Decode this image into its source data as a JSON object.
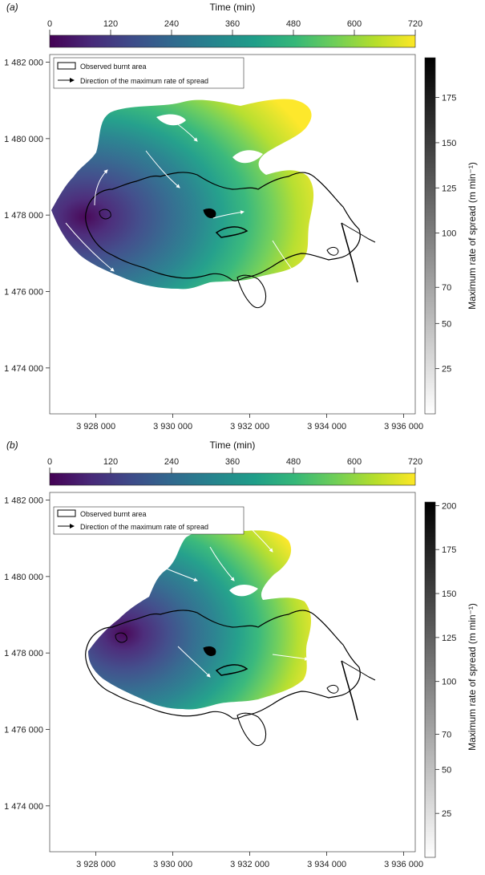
{
  "panels": [
    {
      "panel_label": "(a)",
      "time_colorbar": {
        "title": "Time (min)",
        "ticks": [
          "0",
          "120",
          "240",
          "360",
          "480",
          "600",
          "720"
        ],
        "range": [
          0,
          720
        ]
      },
      "ros_colorbar": {
        "title": "Maximum rate of spread (m min⁻¹)",
        "ticks": [
          "25",
          "50",
          "70",
          "100",
          "125",
          "150",
          "175"
        ],
        "max": 197
      },
      "legend": {
        "burnt_area": "Observed burnt area",
        "direction": "Direction of the maximum rate of spread"
      },
      "x_ticks": [
        "3 928 000",
        "3 930 000",
        "3 932 000",
        "3 934 000",
        "3 936 000"
      ],
      "y_ticks": [
        "1 482 000",
        "1 480 000",
        "1 478 000",
        "1 476 000",
        "1 474 000"
      ]
    },
    {
      "panel_label": "(b)",
      "time_colorbar": {
        "title": "Time (min)",
        "ticks": [
          "0",
          "120",
          "240",
          "360",
          "480",
          "600",
          "720"
        ],
        "range": [
          0,
          720
        ]
      },
      "ros_colorbar": {
        "title": "Maximum rate of spread (m min⁻¹)",
        "ticks": [
          "25",
          "50",
          "70",
          "100",
          "125",
          "150",
          "175",
          "200"
        ],
        "max": 202
      },
      "legend": {
        "burnt_area": "Observed burnt area",
        "direction": "Direction of the maximum rate of spread"
      },
      "x_ticks": [
        "3 928 000",
        "3 930 000",
        "3 932 000",
        "3 934 000",
        "3 936 000"
      ],
      "y_ticks": [
        "1 482 000",
        "1 480 000",
        "1 478 000",
        "1 476 000",
        "1 474 000"
      ]
    }
  ],
  "chart_data": [
    {
      "type": "heatmap",
      "description_of_values": "simulated fire arrival time over map extent",
      "x_axis_ticks": [
        3928000,
        3930000,
        3932000,
        3934000,
        3936000
      ],
      "y_axis_ticks": [
        1474000,
        1476000,
        1478000,
        1480000,
        1482000
      ],
      "xlim": [
        3926800,
        3936300
      ],
      "ylim": [
        1472800,
        1482200
      ],
      "color_scale": {
        "name": "Time (min)",
        "range": [
          0,
          720
        ],
        "colormap": "viridis"
      },
      "secondary_scale": {
        "name": "Maximum rate of spread (m min⁻¹)",
        "range": [
          0,
          197
        ],
        "colormap": "greys"
      },
      "ignition_point_approx": [
        3928000,
        1477400
      ],
      "legend": [
        "Observed burnt area",
        "Direction of the maximum rate of spread"
      ]
    },
    {
      "type": "heatmap",
      "description_of_values": "simulated fire arrival time over map extent",
      "x_axis_ticks": [
        3928000,
        3930000,
        3932000,
        3934000,
        3936000
      ],
      "y_axis_ticks": [
        1474000,
        1476000,
        1478000,
        1480000,
        1482000
      ],
      "xlim": [
        3926800,
        3936300
      ],
      "ylim": [
        1472800,
        1482200
      ],
      "color_scale": {
        "name": "Time (min)",
        "range": [
          0,
          720
        ],
        "colormap": "viridis"
      },
      "secondary_scale": {
        "name": "Maximum rate of spread (m min⁻¹)",
        "range": [
          0,
          202
        ],
        "colormap": "greys"
      },
      "ignition_point_approx": [
        3928200,
        1477500
      ],
      "legend": [
        "Observed burnt area",
        "Direction of the maximum rate of spread"
      ]
    }
  ],
  "colors": {
    "viridis_stops": [
      "#440154",
      "#482878",
      "#3e4a89",
      "#31688e",
      "#26828e",
      "#1f9e89",
      "#35b779",
      "#6ece58",
      "#b5de2b",
      "#fde725"
    ],
    "outline": "#000000",
    "arrow": "#ffffff"
  }
}
